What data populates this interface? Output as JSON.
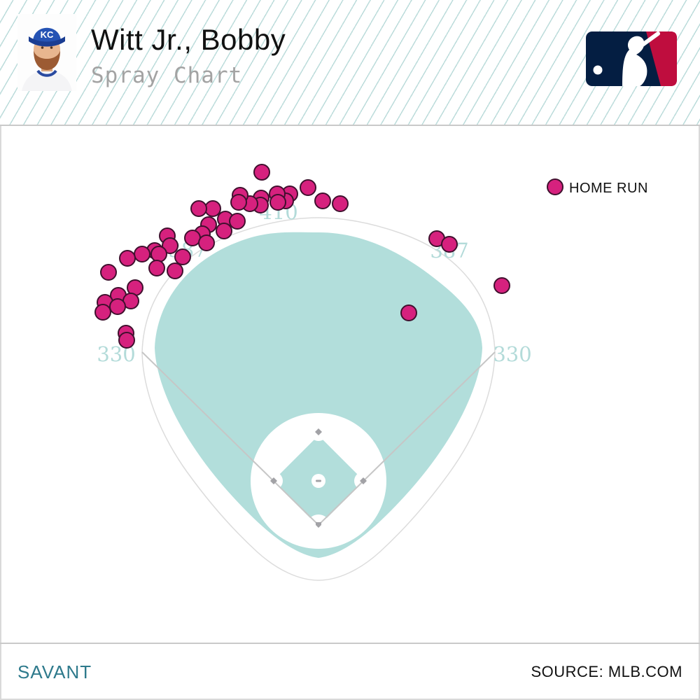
{
  "header": {
    "title": "Witt Jr., Bobby",
    "subtitle": "Spray Chart",
    "cap_label": "KC"
  },
  "legend": {
    "label": "HOME RUN",
    "color": "#d6217e"
  },
  "footer": {
    "brand": "SAVANT",
    "source": "SOURCE: MLB.COM"
  },
  "colors": {
    "dot_fill": "#d6217e",
    "dot_stroke": "#40102e",
    "field_teal": "#b2dedb",
    "label_teal": "#b3dbd9",
    "stripe_teal": "#bcdcdb",
    "savant_teal": "#2e7a8c",
    "mlb_navy": "#041e42",
    "mlb_red": "#bf0d3e"
  },
  "chart_data": {
    "type": "scatter",
    "title": "Spray Chart",
    "legend_position": "top-right",
    "marker_radius": 11,
    "series": [
      {
        "name": "HOME RUN",
        "color": "#d6217e",
        "stroke": "#40102e",
        "points": [
          [
            374,
            246
          ],
          [
            440,
            268
          ],
          [
            461,
            287
          ],
          [
            486,
            291
          ],
          [
            414,
            277
          ],
          [
            408,
            287
          ],
          [
            396,
            277
          ],
          [
            397,
            289
          ],
          [
            373,
            283
          ],
          [
            372,
            293
          ],
          [
            357,
            291
          ],
          [
            343,
            279
          ],
          [
            341,
            289
          ],
          [
            304,
            298
          ],
          [
            284,
            298
          ],
          [
            298,
            321
          ],
          [
            322,
            313
          ],
          [
            320,
            330
          ],
          [
            339,
            316
          ],
          [
            289,
            334
          ],
          [
            275,
            340
          ],
          [
            295,
            347
          ],
          [
            239,
            337
          ],
          [
            243,
            351
          ],
          [
            261,
            367
          ],
          [
            221,
            358
          ],
          [
            227,
            363
          ],
          [
            203,
            363
          ],
          [
            182,
            369
          ],
          [
            224,
            383
          ],
          [
            250,
            387
          ],
          [
            155,
            389
          ],
          [
            193,
            411
          ],
          [
            169,
            422
          ],
          [
            187,
            430
          ],
          [
            150,
            432
          ],
          [
            168,
            438
          ],
          [
            147,
            446
          ],
          [
            180,
            476
          ],
          [
            181,
            486
          ],
          [
            624,
            341
          ],
          [
            642,
            349
          ],
          [
            717,
            408
          ],
          [
            584,
            447
          ]
        ]
      }
    ],
    "field_labels": [
      {
        "text": "330",
        "x": 166,
        "y": 516
      },
      {
        "text": "387",
        "x": 268,
        "y": 367
      },
      {
        "text": "410",
        "x": 398,
        "y": 313
      },
      {
        "text": "387",
        "x": 642,
        "y": 368
      },
      {
        "text": "330",
        "x": 732,
        "y": 516
      }
    ]
  }
}
